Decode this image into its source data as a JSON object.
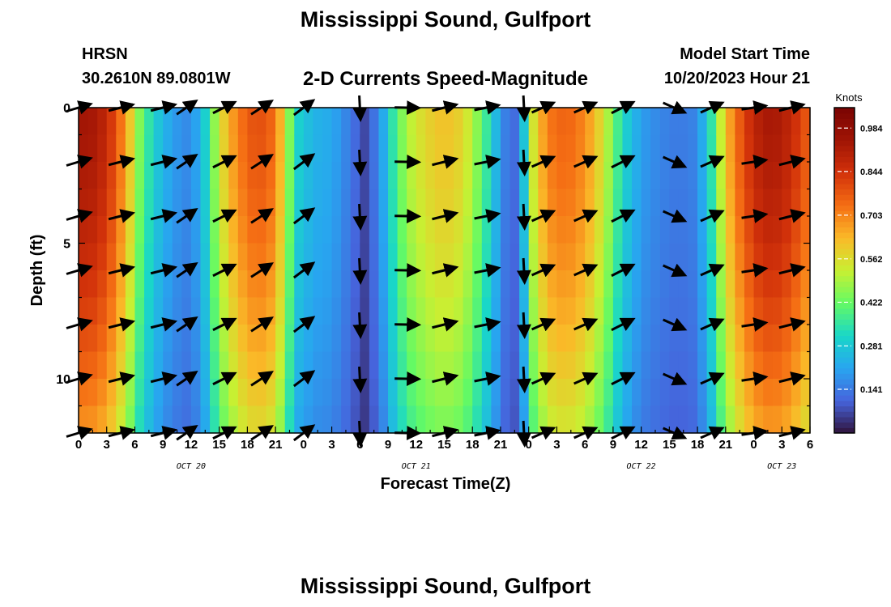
{
  "header": {
    "title": "Mississippi Sound, Gulfport",
    "station": "HRSN",
    "coords": "30.2610N  89.0801W",
    "subtitle": "2-D Currents Speed-Magnitude",
    "model_start_label": "Model Start Time",
    "model_start_value": "10/20/2023 Hour 21"
  },
  "footer": {
    "title": "Mississippi Sound, Gulfport"
  },
  "chart_data": {
    "type": "heatmap",
    "title": "2-D Currents Speed-Magnitude",
    "xlabel": "Forecast Time(Z)",
    "ylabel": "Depth (ft)",
    "colorbar_label": "Knots",
    "x_range_hours": [
      0,
      78
    ],
    "x_ticks": [
      {
        "hour": 0,
        "label": "0"
      },
      {
        "hour": 3,
        "label": "3"
      },
      {
        "hour": 6,
        "label": "6"
      },
      {
        "hour": 9,
        "label": "9"
      },
      {
        "hour": 12,
        "label": "12"
      },
      {
        "hour": 15,
        "label": "15"
      },
      {
        "hour": 18,
        "label": "18"
      },
      {
        "hour": 21,
        "label": "21"
      },
      {
        "hour": 24,
        "label": "0"
      },
      {
        "hour": 27,
        "label": "3"
      },
      {
        "hour": 30,
        "label": "6"
      },
      {
        "hour": 33,
        "label": "9"
      },
      {
        "hour": 36,
        "label": "12"
      },
      {
        "hour": 39,
        "label": "15"
      },
      {
        "hour": 42,
        "label": "18"
      },
      {
        "hour": 45,
        "label": "21"
      },
      {
        "hour": 48,
        "label": "0"
      },
      {
        "hour": 51,
        "label": "3"
      },
      {
        "hour": 54,
        "label": "6"
      },
      {
        "hour": 57,
        "label": "9"
      },
      {
        "hour": 60,
        "label": "12"
      },
      {
        "hour": 63,
        "label": "15"
      },
      {
        "hour": 66,
        "label": "18"
      },
      {
        "hour": 69,
        "label": "21"
      },
      {
        "hour": 72,
        "label": "0"
      },
      {
        "hour": 75,
        "label": "3"
      },
      {
        "hour": 78,
        "label": "6"
      }
    ],
    "date_labels": [
      {
        "hour": 12,
        "label": "OCT 20"
      },
      {
        "hour": 36,
        "label": "OCT 21"
      },
      {
        "hour": 60,
        "label": "OCT 22"
      },
      {
        "hour": 75,
        "label": "OCT 23"
      }
    ],
    "y_range_ft": [
      0,
      12
    ],
    "y_ticks": [
      0,
      5,
      10
    ],
    "colorbar_ticks": [
      0.141,
      0.281,
      0.422,
      0.562,
      0.703,
      0.844,
      0.984
    ],
    "colorbar_range": [
      0,
      1.05
    ],
    "speed_profile": [
      {
        "hour": 0,
        "speed": 0.93
      },
      {
        "hour": 1,
        "speed": 0.95
      },
      {
        "hour": 3,
        "speed": 0.88
      },
      {
        "hour": 5,
        "speed": 0.68
      },
      {
        "hour": 6.5,
        "speed": 0.45
      },
      {
        "hour": 8,
        "speed": 0.3
      },
      {
        "hour": 10,
        "speed": 0.2
      },
      {
        "hour": 12,
        "speed": 0.16
      },
      {
        "hour": 13.5,
        "speed": 0.3
      },
      {
        "hour": 15,
        "speed": 0.55
      },
      {
        "hour": 17,
        "speed": 0.72
      },
      {
        "hour": 19,
        "speed": 0.8
      },
      {
        "hour": 21,
        "speed": 0.74
      },
      {
        "hour": 22.5,
        "speed": 0.45
      },
      {
        "hour": 23.5,
        "speed": 0.3
      },
      {
        "hour": 25,
        "speed": 0.24
      },
      {
        "hour": 27,
        "speed": 0.22
      },
      {
        "hour": 29,
        "speed": 0.14
      },
      {
        "hour": 30.5,
        "speed": 0.07
      },
      {
        "hour": 32,
        "speed": 0.16
      },
      {
        "hour": 33.5,
        "speed": 0.35
      },
      {
        "hour": 35,
        "speed": 0.5
      },
      {
        "hour": 37,
        "speed": 0.58
      },
      {
        "hour": 39,
        "speed": 0.62
      },
      {
        "hour": 41,
        "speed": 0.58
      },
      {
        "hour": 43,
        "speed": 0.42
      },
      {
        "hour": 44.5,
        "speed": 0.25
      },
      {
        "hour": 46,
        "speed": 0.1
      },
      {
        "hour": 47,
        "speed": 0.14
      },
      {
        "hour": 48.5,
        "speed": 0.55
      },
      {
        "hour": 50,
        "speed": 0.72
      },
      {
        "hour": 52,
        "speed": 0.76
      },
      {
        "hour": 54,
        "speed": 0.7
      },
      {
        "hour": 56,
        "speed": 0.55
      },
      {
        "hour": 58,
        "speed": 0.32
      },
      {
        "hour": 60,
        "speed": 0.2
      },
      {
        "hour": 62,
        "speed": 0.16
      },
      {
        "hour": 64,
        "speed": 0.14
      },
      {
        "hour": 66,
        "speed": 0.16
      },
      {
        "hour": 67.5,
        "speed": 0.35
      },
      {
        "hour": 69,
        "speed": 0.62
      },
      {
        "hour": 71,
        "speed": 0.82
      },
      {
        "hour": 73,
        "speed": 0.93
      },
      {
        "hour": 75,
        "speed": 0.92
      },
      {
        "hour": 77,
        "speed": 0.82
      },
      {
        "hour": 78,
        "speed": 0.75
      }
    ],
    "vector_depths_ft": [
      0,
      2,
      4,
      6,
      8,
      10,
      12
    ],
    "vectors": [
      {
        "hour": 0,
        "dx": 1,
        "dy": -0.3
      },
      {
        "hour": 4.5,
        "dx": 1,
        "dy": -0.25
      },
      {
        "hour": 9,
        "dx": 1,
        "dy": -0.25
      },
      {
        "hour": 11.5,
        "dx": 0.8,
        "dy": -0.55
      },
      {
        "hour": 15.5,
        "dx": 0.9,
        "dy": -0.45
      },
      {
        "hour": 19.5,
        "dx": 0.85,
        "dy": -0.55
      },
      {
        "hour": 24,
        "dx": 0.8,
        "dy": -0.6
      },
      {
        "hour": 30,
        "dx": 0.05,
        "dy": 1
      },
      {
        "hour": 35,
        "dx": 1,
        "dy": 0.02
      },
      {
        "hour": 39,
        "dx": 1,
        "dy": -0.25
      },
      {
        "hour": 43.5,
        "dx": 1,
        "dy": -0.2
      },
      {
        "hour": 47.5,
        "dx": 0.05,
        "dy": 1
      },
      {
        "hour": 49.5,
        "dx": 0.9,
        "dy": -0.4
      },
      {
        "hour": 54,
        "dx": 0.9,
        "dy": -0.4
      },
      {
        "hour": 58,
        "dx": 0.9,
        "dy": -0.45
      },
      {
        "hour": 63.5,
        "dx": 0.9,
        "dy": 0.4
      },
      {
        "hour": 67.5,
        "dx": 0.9,
        "dy": -0.4
      },
      {
        "hour": 72,
        "dx": 1,
        "dy": -0.15
      },
      {
        "hour": 76,
        "dx": 1,
        "dy": -0.25
      }
    ]
  }
}
